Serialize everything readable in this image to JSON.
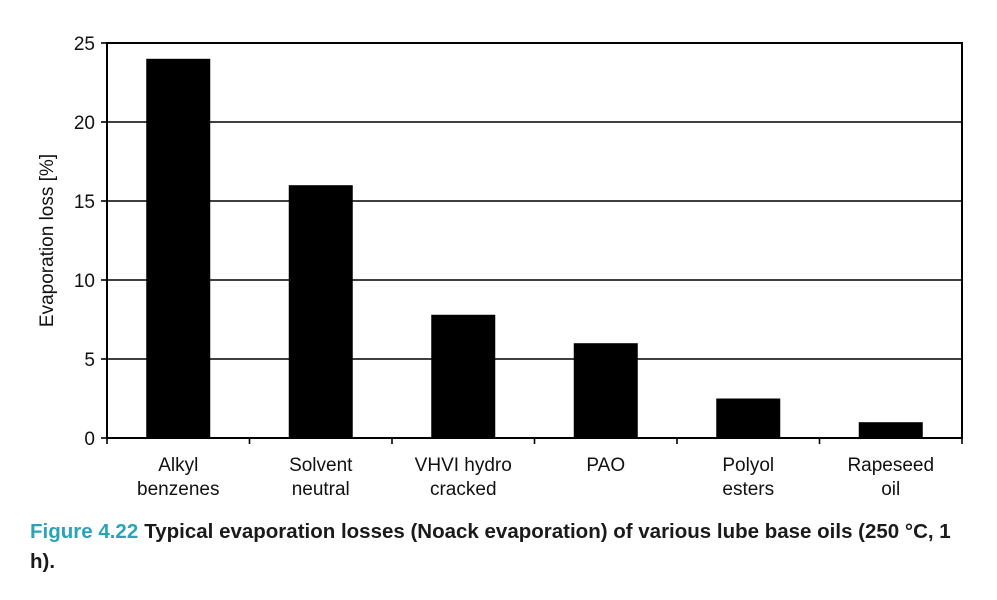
{
  "chart_data": {
    "type": "bar",
    "categories": [
      [
        "Alkyl",
        "benzenes"
      ],
      [
        "Solvent",
        "neutral"
      ],
      [
        "VHVI hydro",
        "cracked"
      ],
      [
        "PAO"
      ],
      [
        "Polyol",
        "esters"
      ],
      [
        "Rapeseed",
        "oil"
      ]
    ],
    "values": [
      24,
      16,
      7.8,
      6,
      2.5,
      1
    ],
    "ylabel": "Evaporation loss [%]",
    "xlabel": "",
    "ylim": [
      0,
      25
    ],
    "yticks": [
      0,
      5,
      10,
      15,
      20,
      25
    ],
    "grid": "horizontal",
    "bar_color": "#000000"
  },
  "caption": {
    "figure_number": "Figure 4.22",
    "text": "Typical evaporation losses (Noack evaporation) of various lube base oils (250 °C, 1 h)."
  }
}
